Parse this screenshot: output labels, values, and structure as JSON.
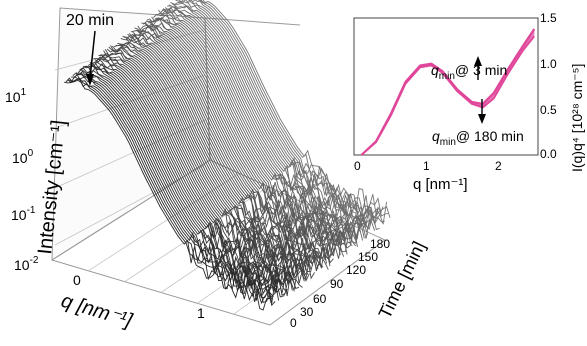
{
  "chart_data": [
    {
      "type": "surface",
      "annotation": "20 min",
      "xlabel": "q [nm⁻¹]",
      "ylabel": "Time [min]",
      "zlabel": "Intensity [cm⁻¹]",
      "x_ticks": [
        "0",
        "1"
      ],
      "y_ticks": [
        "0",
        "30",
        "60",
        "90",
        "120",
        "150",
        "180"
      ],
      "z_ticks": [
        {
          "base": "10",
          "exp": "1"
        },
        {
          "base": "10",
          "exp": "0"
        },
        {
          "base": "10",
          "exp": "-1"
        },
        {
          "base": "10",
          "exp": "-2"
        }
      ],
      "x_range": [
        0,
        2.5
      ],
      "y_range": [
        0,
        180
      ],
      "z_range_log10": [
        -2.5,
        1.5
      ],
      "z_scale": "log",
      "series_profile": {
        "q": [
          0.05,
          0.2,
          0.4,
          0.6,
          0.8,
          1.0,
          1.2,
          1.4,
          1.6,
          1.8,
          2.0,
          2.2,
          2.4
        ],
        "log10_intensity": [
          0.75,
          0.8,
          0.7,
          0.45,
          0.05,
          -0.5,
          -1.0,
          -1.4,
          -1.7,
          -1.9,
          -2.0,
          -2.05,
          -2.1
        ]
      }
    },
    {
      "type": "line",
      "xlabel": "q [nm⁻¹]",
      "ylabel": "I(q)q⁴ [10²⁸ cm⁻⁵]",
      "x_ticks": [
        "0",
        "1",
        "2"
      ],
      "y_ticks": [
        "0.0",
        "0.5",
        "1.0",
        "1.5"
      ],
      "xlim": [
        0,
        2.5
      ],
      "ylim": [
        0,
        1.5
      ],
      "color": "#e0489b",
      "annotations": [
        {
          "label": "q",
          "sub": "min",
          "text": "@ 3 min"
        },
        {
          "label": "q",
          "sub": "min",
          "text": "@ 180 min"
        }
      ],
      "series": [
        {
          "time_min": 3,
          "x": [
            0.1,
            0.3,
            0.5,
            0.7,
            0.9,
            1.05,
            1.2,
            1.4,
            1.6,
            1.75,
            1.9,
            2.1,
            2.3,
            2.45
          ],
          "y": [
            0.0,
            0.15,
            0.45,
            0.8,
            0.98,
            1.0,
            0.92,
            0.72,
            0.58,
            0.56,
            0.68,
            0.95,
            1.2,
            1.38
          ]
        },
        {
          "time_min": 180,
          "x": [
            0.1,
            0.3,
            0.5,
            0.7,
            0.9,
            1.05,
            1.2,
            1.4,
            1.6,
            1.75,
            1.9,
            2.1,
            2.3,
            2.45
          ],
          "y": [
            0.0,
            0.14,
            0.43,
            0.78,
            0.96,
            0.98,
            0.9,
            0.7,
            0.56,
            0.52,
            0.62,
            0.9,
            1.15,
            1.3
          ]
        }
      ]
    }
  ]
}
